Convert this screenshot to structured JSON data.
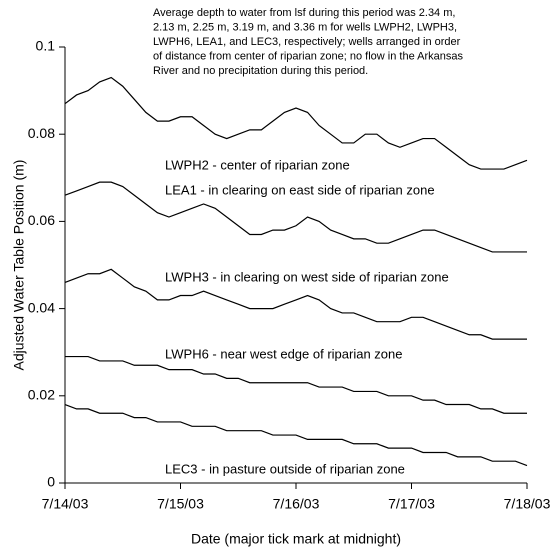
{
  "chart_data": {
    "type": "line",
    "annotation": [
      "Average depth to water from lsf during this period was 2.34 m,",
      "2.13 m, 2.25 m, 3.19 m, and 3.36 m for wells LWPH2, LWPH3,",
      "LWPH6, LEA1, and LEC3, respectively; wells arranged in order",
      "of distance from center of riparian zone; no flow in the Arkansas",
      "River and no precipitation during this period."
    ],
    "x_label": "Date (major tick mark at midnight)",
    "y_label": "Adjusted Water Table Position (m)",
    "x": [
      0,
      0.1,
      0.2,
      0.3,
      0.4,
      0.5,
      0.6,
      0.7,
      0.8,
      0.9,
      1,
      1.1,
      1.2,
      1.3,
      1.4,
      1.5,
      1.6,
      1.7,
      1.8,
      1.9,
      2,
      2.1,
      2.2,
      2.3,
      2.4,
      2.5,
      2.6,
      2.7,
      2.8,
      2.9,
      3,
      3.1,
      3.2,
      3.3,
      3.4,
      3.5,
      3.6,
      3.7,
      3.8,
      3.9,
      4
    ],
    "xlim": [
      0,
      4
    ],
    "xticks": [
      {
        "value": 0,
        "label": "7/14/03"
      },
      {
        "value": 1,
        "label": "7/15/03"
      },
      {
        "value": 2,
        "label": "7/16/03"
      },
      {
        "value": 3,
        "label": "7/17/03"
      },
      {
        "value": 4,
        "label": "7/18/03"
      }
    ],
    "ylim": [
      0,
      0.1
    ],
    "yticks": [
      0,
      0.02,
      0.04,
      0.06,
      0.08,
      0.1
    ],
    "series": [
      {
        "name": "LWPH2 - center of riparian zone",
        "color": "#000000",
        "values": [
          0.087,
          0.089,
          0.09,
          0.092,
          0.093,
          0.091,
          0.088,
          0.085,
          0.083,
          0.083,
          0.084,
          0.084,
          0.082,
          0.08,
          0.079,
          0.08,
          0.081,
          0.081,
          0.083,
          0.085,
          0.086,
          0.085,
          0.082,
          0.08,
          0.078,
          0.078,
          0.08,
          0.08,
          0.078,
          0.077,
          0.078,
          0.079,
          0.079,
          0.077,
          0.075,
          0.073,
          0.072,
          0.072,
          0.072,
          0.073,
          0.074
        ]
      },
      {
        "name": "LEA1 - in clearing on east side of riparian zone",
        "color": "#000000",
        "values": [
          0.066,
          0.067,
          0.068,
          0.069,
          0.069,
          0.068,
          0.066,
          0.064,
          0.062,
          0.061,
          0.062,
          0.063,
          0.064,
          0.063,
          0.061,
          0.059,
          0.057,
          0.057,
          0.058,
          0.058,
          0.059,
          0.061,
          0.06,
          0.058,
          0.057,
          0.056,
          0.056,
          0.055,
          0.055,
          0.056,
          0.057,
          0.058,
          0.058,
          0.057,
          0.056,
          0.055,
          0.054,
          0.053,
          0.053,
          0.053,
          0.053
        ]
      },
      {
        "name": "LWPH3 - in clearing on west side of riparian zone",
        "color": "#000000",
        "values": [
          0.046,
          0.047,
          0.048,
          0.048,
          0.049,
          0.047,
          0.045,
          0.044,
          0.042,
          0.042,
          0.043,
          0.043,
          0.044,
          0.043,
          0.042,
          0.041,
          0.04,
          0.04,
          0.04,
          0.041,
          0.042,
          0.043,
          0.042,
          0.04,
          0.039,
          0.039,
          0.038,
          0.037,
          0.037,
          0.037,
          0.038,
          0.038,
          0.037,
          0.036,
          0.035,
          0.034,
          0.034,
          0.033,
          0.033,
          0.033,
          0.033
        ]
      },
      {
        "name": "LWPH6 - near west edge of riparian zone",
        "color": "#000000",
        "values": [
          0.029,
          0.029,
          0.029,
          0.028,
          0.028,
          0.028,
          0.027,
          0.027,
          0.027,
          0.026,
          0.026,
          0.026,
          0.025,
          0.025,
          0.024,
          0.024,
          0.023,
          0.023,
          0.023,
          0.023,
          0.023,
          0.023,
          0.022,
          0.022,
          0.022,
          0.021,
          0.021,
          0.021,
          0.02,
          0.02,
          0.02,
          0.019,
          0.019,
          0.018,
          0.018,
          0.018,
          0.017,
          0.017,
          0.016,
          0.016,
          0.016
        ]
      },
      {
        "name": "LEC3 - in pasture outside of riparian zone",
        "color": "#000000",
        "values": [
          0.018,
          0.017,
          0.017,
          0.016,
          0.016,
          0.016,
          0.015,
          0.015,
          0.014,
          0.014,
          0.014,
          0.013,
          0.013,
          0.013,
          0.012,
          0.012,
          0.012,
          0.012,
          0.011,
          0.011,
          0.011,
          0.01,
          0.01,
          0.01,
          0.01,
          0.009,
          0.009,
          0.009,
          0.008,
          0.008,
          0.008,
          0.007,
          0.007,
          0.007,
          0.006,
          0.006,
          0.006,
          0.005,
          0.005,
          0.005,
          0.004
        ]
      }
    ]
  }
}
